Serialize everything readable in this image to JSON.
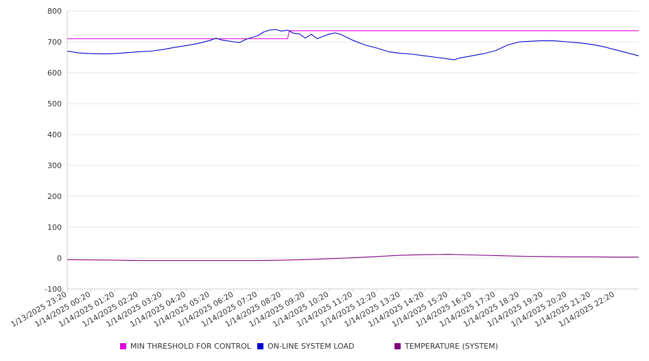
{
  "chart_data": {
    "type": "line",
    "title": "",
    "xlabel": "",
    "ylabel": "",
    "ylim": [
      -100,
      800
    ],
    "yticks": [
      -100,
      0,
      100,
      200,
      300,
      400,
      500,
      600,
      700,
      800
    ],
    "xlim": [
      "1/13/2025 23:20",
      "1/14/2025 23:20"
    ],
    "xtick_labels": [
      "1/13/2025 23:20",
      "1/14/2025 00:20",
      "1/14/2025 01:20",
      "1/14/2025 02:20",
      "1/14/2025 03:20",
      "1/14/2025 04:20",
      "1/14/2025 05:20",
      "1/14/2025 06:20",
      "1/14/2025 07:20",
      "1/14/2025 08:20",
      "1/14/2025 09:20",
      "1/14/2025 10:20",
      "1/14/2025 11:20",
      "1/14/2025 12:20",
      "1/14/2025 13:20",
      "1/14/2025 14:20",
      "1/14/2025 15:20",
      "1/14/2025 16:20",
      "1/14/2025 17:20",
      "1/14/2025 18:20",
      "1/14/2025 19:20",
      "1/14/2025 20:20",
      "1/14/2025 21:20",
      "1/14/2025 22:20"
    ],
    "grid": "horizontal",
    "legend_position": "bottom",
    "series": [
      {
        "name": "MIN THRESHOLD FOR CONTROL",
        "color": "#e000e0",
        "points": [
          [
            "1/13/2025 23:20",
            710
          ],
          [
            "1/14/2025 08:35",
            710
          ],
          [
            "1/14/2025 08:40",
            736
          ],
          [
            "1/14/2025 23:20",
            736
          ]
        ]
      },
      {
        "name": "ON-LINE SYSTEM LOAD",
        "color": "#0000cc",
        "points": [
          [
            "1/13/2025 23:20",
            670
          ],
          [
            "1/13/2025 23:50",
            664
          ],
          [
            "1/14/2025 00:20",
            662
          ],
          [
            "1/14/2025 00:50",
            661
          ],
          [
            "1/14/2025 01:20",
            662
          ],
          [
            "1/14/2025 01:50",
            665
          ],
          [
            "1/14/2025 02:20",
            668
          ],
          [
            "1/14/2025 02:50",
            670
          ],
          [
            "1/14/2025 03:20",
            675
          ],
          [
            "1/14/2025 03:50",
            682
          ],
          [
            "1/14/2025 04:20",
            688
          ],
          [
            "1/14/2025 04:50",
            695
          ],
          [
            "1/14/2025 05:20",
            705
          ],
          [
            "1/14/2025 05:35",
            712
          ],
          [
            "1/14/2025 05:50",
            706
          ],
          [
            "1/14/2025 06:20",
            700
          ],
          [
            "1/14/2025 06:35",
            698
          ],
          [
            "1/14/2025 06:50",
            708
          ],
          [
            "1/14/2025 07:20",
            720
          ],
          [
            "1/14/2025 07:35",
            732
          ],
          [
            "1/14/2025 07:50",
            738
          ],
          [
            "1/14/2025 08:05",
            740
          ],
          [
            "1/14/2025 08:20",
            735
          ],
          [
            "1/14/2025 08:35",
            738
          ],
          [
            "1/14/2025 08:50",
            728
          ],
          [
            "1/14/2025 09:05",
            726
          ],
          [
            "1/14/2025 09:20",
            712
          ],
          [
            "1/14/2025 09:35",
            725
          ],
          [
            "1/14/2025 09:50",
            710
          ],
          [
            "1/14/2025 10:05",
            718
          ],
          [
            "1/14/2025 10:20",
            725
          ],
          [
            "1/14/2025 10:35",
            729
          ],
          [
            "1/14/2025 10:50",
            724
          ],
          [
            "1/14/2025 11:20",
            705
          ],
          [
            "1/14/2025 11:50",
            690
          ],
          [
            "1/14/2025 12:20",
            680
          ],
          [
            "1/14/2025 12:50",
            668
          ],
          [
            "1/14/2025 13:20",
            663
          ],
          [
            "1/14/2025 13:50",
            660
          ],
          [
            "1/14/2025 14:20",
            655
          ],
          [
            "1/14/2025 14:50",
            650
          ],
          [
            "1/14/2025 15:20",
            645
          ],
          [
            "1/14/2025 15:35",
            642
          ],
          [
            "1/14/2025 15:50",
            648
          ],
          [
            "1/14/2025 16:20",
            655
          ],
          [
            "1/14/2025 16:50",
            662
          ],
          [
            "1/14/2025 17:20",
            672
          ],
          [
            "1/14/2025 17:50",
            690
          ],
          [
            "1/14/2025 18:20",
            700
          ],
          [
            "1/14/2025 18:50",
            702
          ],
          [
            "1/14/2025 19:20",
            704
          ],
          [
            "1/14/2025 19:50",
            703
          ],
          [
            "1/14/2025 20:20",
            700
          ],
          [
            "1/14/2025 20:50",
            697
          ],
          [
            "1/14/2025 21:20",
            692
          ],
          [
            "1/14/2025 21:50",
            685
          ],
          [
            "1/14/2025 22:20",
            675
          ],
          [
            "1/14/2025 22:50",
            665
          ],
          [
            "1/14/2025 23:20",
            655
          ]
        ]
      },
      {
        "name": "TEMPERATURE (SYSTEM)",
        "color": "#800080",
        "points": [
          [
            "1/13/2025 23:20",
            -5
          ],
          [
            "1/14/2025 00:20",
            -6
          ],
          [
            "1/14/2025 01:20",
            -7
          ],
          [
            "1/14/2025 02:20",
            -8
          ],
          [
            "1/14/2025 03:20",
            -8
          ],
          [
            "1/14/2025 04:20",
            -8
          ],
          [
            "1/14/2025 05:20",
            -8
          ],
          [
            "1/14/2025 06:20",
            -8
          ],
          [
            "1/14/2025 07:20",
            -8
          ],
          [
            "1/14/2025 08:20",
            -7
          ],
          [
            "1/14/2025 09:20",
            -5
          ],
          [
            "1/14/2025 10:20",
            -2
          ],
          [
            "1/14/2025 11:20",
            1
          ],
          [
            "1/14/2025 12:20",
            5
          ],
          [
            "1/14/2025 13:20",
            9
          ],
          [
            "1/14/2025 14:20",
            11
          ],
          [
            "1/14/2025 15:20",
            12
          ],
          [
            "1/14/2025 16:20",
            10
          ],
          [
            "1/14/2025 17:20",
            8
          ],
          [
            "1/14/2025 18:20",
            6
          ],
          [
            "1/14/2025 19:20",
            5
          ],
          [
            "1/14/2025 20:20",
            4
          ],
          [
            "1/14/2025 21:20",
            4
          ],
          [
            "1/14/2025 22:20",
            3
          ],
          [
            "1/14/2025 23:20",
            3
          ]
        ]
      }
    ]
  }
}
